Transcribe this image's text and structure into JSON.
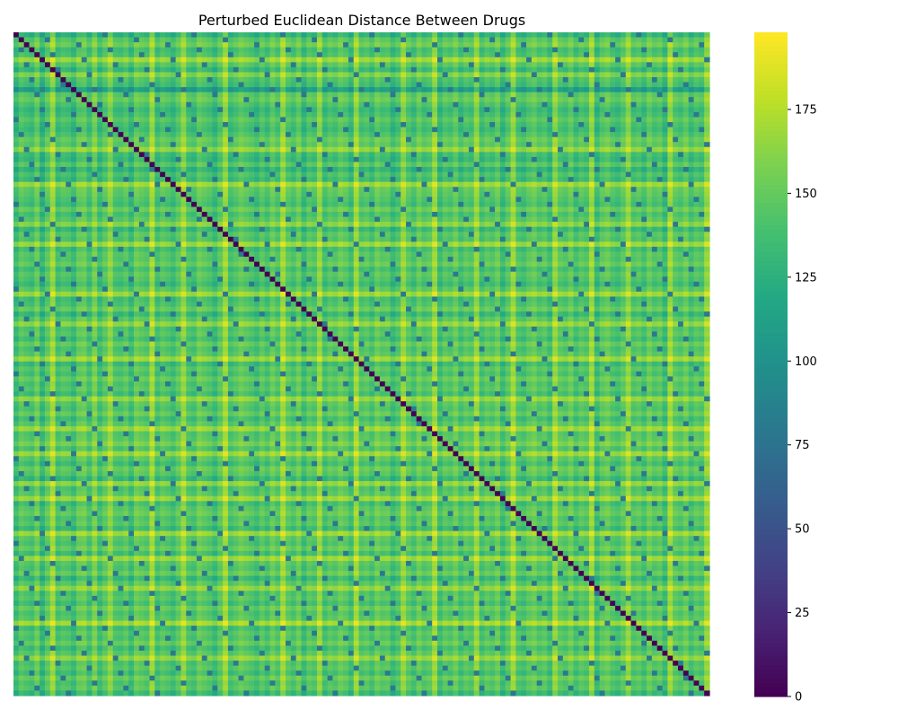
{
  "chart_data": {
    "type": "heatmap",
    "title": "Perturbed Euclidean Distance Between Drugs",
    "xlabel": "",
    "ylabel": "",
    "n_items": 133,
    "diagonal_value": 0,
    "colormap": "viridis",
    "value_range": [
      0,
      198
    ],
    "colorbar": {
      "ticks": [
        0,
        25,
        50,
        75,
        100,
        125,
        150,
        175
      ],
      "tick_labels": [
        "0",
        "25",
        "50",
        "75",
        "100",
        "125",
        "150",
        "175"
      ],
      "placement": "right"
    },
    "row_profile_values": [
      110,
      150,
      165,
      130,
      140,
      190,
      150,
      120,
      175,
      140,
      130,
      60,
      150,
      160,
      140,
      120,
      130,
      150,
      135,
      125,
      140,
      160,
      150,
      185,
      130,
      120,
      150,
      110,
      140,
      125,
      190,
      155,
      150,
      140,
      130,
      160,
      135,
      150,
      180,
      120,
      150,
      140,
      190,
      130,
      150,
      145,
      160,
      130,
      150,
      140,
      125,
      150,
      190,
      130,
      140,
      160,
      120,
      150,
      185,
      140,
      150,
      130,
      160,
      140,
      150,
      190,
      125,
      150,
      135,
      160,
      140,
      150,
      130,
      185,
      150,
      140,
      160,
      130,
      150,
      190,
      145,
      150,
      170,
      140,
      190,
      150,
      130,
      160,
      150,
      120,
      185,
      140,
      150,
      190,
      130,
      150,
      160,
      140,
      150,
      125,
      190,
      150,
      140,
      160,
      130,
      190,
      150,
      140,
      160,
      120,
      150,
      185,
      140,
      150,
      130,
      160,
      140,
      150,
      195,
      130,
      150,
      140,
      160,
      130,
      150,
      185,
      140,
      150,
      130,
      160,
      140,
      150,
      120
    ],
    "column_profile_values": [
      120,
      150,
      140,
      130,
      160,
      110,
      150,
      190,
      130,
      145,
      140,
      120,
      155,
      160,
      130,
      170,
      125,
      150,
      180,
      140,
      135,
      150,
      120,
      160,
      150,
      140,
      190,
      130,
      150,
      140,
      125,
      150,
      185,
      140,
      130,
      160,
      150,
      140,
      120,
      150,
      190,
      130,
      145,
      160,
      150,
      140,
      125,
      150,
      130,
      160,
      140,
      190,
      150,
      135,
      160,
      120,
      150,
      140,
      185,
      130,
      150,
      140,
      160,
      150,
      125,
      190,
      140,
      150,
      130,
      160,
      145,
      150,
      120,
      140,
      185,
      150,
      130,
      160,
      140,
      150,
      190,
      125,
      150,
      140,
      160,
      130,
      150,
      140,
      185,
      130,
      150,
      140,
      160,
      120,
      150,
      190,
      140,
      130,
      150,
      160,
      140,
      150,
      125,
      185,
      150,
      140,
      160,
      130,
      150,
      140,
      190,
      120,
      150,
      160,
      140,
      130,
      150,
      185,
      140,
      150,
      130,
      160,
      140,
      150,
      120,
      190,
      150,
      140,
      160,
      130,
      150,
      140,
      185
    ]
  }
}
